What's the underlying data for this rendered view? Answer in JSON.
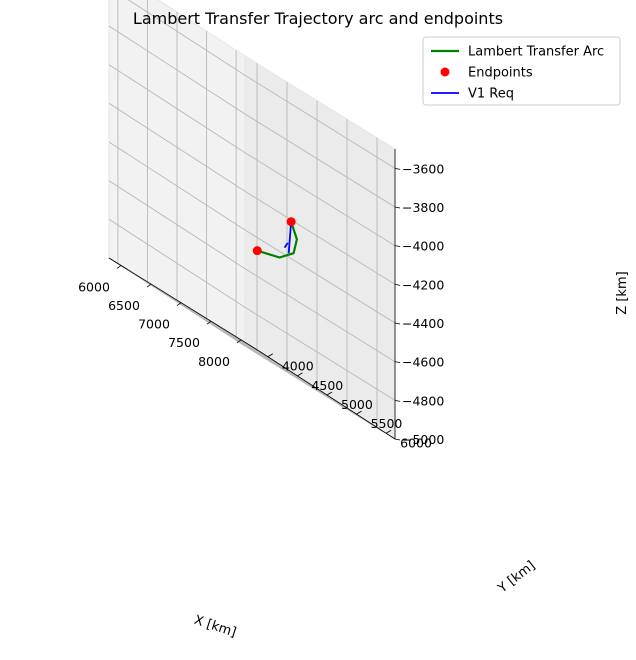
{
  "chart_data": {
    "type": "line3d",
    "title": "Lambert Transfer Trajectory arc and endpoints",
    "xlabel": "X [km]",
    "ylabel": "Y [km]",
    "zlabel": "Z [km]",
    "xlim": [
      5800,
      8300
    ],
    "ylim": [
      3850,
      6150
    ],
    "zlim": [
      -5000,
      -3500
    ],
    "x_ticks": [
      "6000",
      "6500",
      "7000",
      "7500",
      "8000"
    ],
    "y_ticks": [
      "4000",
      "4500",
      "5000",
      "5500",
      "6000"
    ],
    "z_ticks": [
      "−3600",
      "−3800",
      "−4000",
      "−4200",
      "−4400",
      "−4600",
      "−4800",
      "−5000"
    ],
    "grid": true,
    "legend_position": "top-right",
    "series": [
      {
        "name": "Lambert Transfer Arc",
        "kind": "line",
        "color": "#008000",
        "points": [
          [
            6300,
            5850,
            -4470
          ],
          [
            6830,
            5690,
            -4435
          ],
          [
            7300,
            5450,
            -4370
          ],
          [
            7650,
            5150,
            -4290
          ],
          [
            7850,
            4850,
            -4220
          ]
        ]
      },
      {
        "name": "Endpoints",
        "kind": "markers",
        "color": "#ff0000",
        "points": [
          [
            6300,
            5850,
            -4470
          ],
          [
            7850,
            4850,
            -4220
          ]
        ]
      },
      {
        "name": "V1 Req",
        "kind": "segments",
        "color": "#0000ff",
        "segments": [
          [
            [
              7850,
              4850,
              -4220
            ],
            [
              7770,
              4890,
              -4390
            ]
          ],
          [
            [
              7765,
              4880,
              -4340
            ],
            [
              7730,
              4860,
              -4375
            ]
          ]
        ]
      }
    ]
  }
}
